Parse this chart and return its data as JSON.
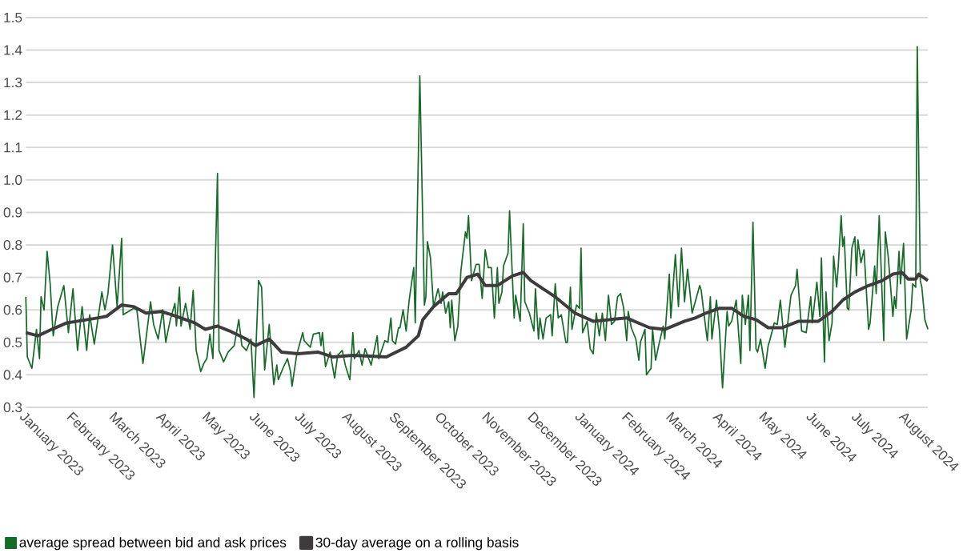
{
  "chart_data": {
    "type": "line",
    "xlim": [
      "2023-01-01",
      "2024-08-16"
    ],
    "ylim": [
      0.3,
      1.5
    ],
    "yticks": [
      0.3,
      0.4,
      0.5,
      0.6,
      0.7,
      0.8,
      0.9,
      {
        "value": 1.0,
        "label": "1.0"
      },
      1.1,
      1.2,
      1.3,
      1.4,
      1.5
    ],
    "xticks": [
      {
        "value": "2023-01-01",
        "label": "January 2023"
      },
      {
        "value": "2023-02-01",
        "label": "February 2023"
      },
      {
        "value": "2023-03-01",
        "label": "March 2023"
      },
      {
        "value": "2023-04-01",
        "label": "April 2023"
      },
      {
        "value": "2023-05-01",
        "label": "May 2023"
      },
      {
        "value": "2023-06-01",
        "label": "June 2023"
      },
      {
        "value": "2023-07-01",
        "label": "July 2023"
      },
      {
        "value": "2023-08-01",
        "label": "August 2023"
      },
      {
        "value": "2023-09-01",
        "label": "September 2023"
      },
      {
        "value": "2023-10-01",
        "label": "October 2023"
      },
      {
        "value": "2023-11-01",
        "label": "November 2023"
      },
      {
        "value": "2023-12-01",
        "label": "December 2023"
      },
      {
        "value": "2024-01-01",
        "label": "January 2024"
      },
      {
        "value": "2024-02-01",
        "label": "February 2024"
      },
      {
        "value": "2024-03-01",
        "label": "March 2024"
      },
      {
        "value": "2024-04-01",
        "label": "April 2024"
      },
      {
        "value": "2024-05-01",
        "label": "May 2024"
      },
      {
        "value": "2024-06-01",
        "label": "June 2024"
      },
      {
        "value": "2024-07-01",
        "label": "July 2024"
      },
      {
        "value": "2024-08-01",
        "label": "August 2024"
      }
    ],
    "grid": "y",
    "legend": "bottom",
    "series": [
      {
        "name": "average spread between bid and ask prices",
        "color": "#176b28",
        "x": [
          "2023-01-01",
          "2023-01-02",
          "2023-01-05",
          "2023-01-08",
          "2023-01-10",
          "2023-01-11",
          "2023-01-13",
          "2023-01-15",
          "2023-01-17",
          "2023-01-19",
          "2023-01-22",
          "2023-01-26",
          "2023-01-29",
          "2023-02-01",
          "2023-02-04",
          "2023-02-07",
          "2023-02-10",
          "2023-02-12",
          "2023-02-15",
          "2023-02-20",
          "2023-02-22",
          "2023-02-24",
          "2023-02-27",
          "2023-03-02",
          "2023-03-05",
          "2023-03-06",
          "2023-03-13",
          "2023-03-15",
          "2023-03-19",
          "2023-03-21",
          "2023-03-24",
          "2023-03-26",
          "2023-03-29",
          "2023-04-01",
          "2023-04-03",
          "2023-04-04",
          "2023-04-06",
          "2023-04-09",
          "2023-04-10",
          "2023-04-12",
          "2023-04-13",
          "2023-04-16",
          "2023-04-19",
          "2023-04-21",
          "2023-04-23",
          "2023-04-26",
          "2023-04-28",
          "2023-04-30",
          "2023-05-02",
          "2023-05-04",
          "2023-05-07",
          "2023-05-08",
          "2023-05-11",
          "2023-05-14",
          "2023-05-18",
          "2023-05-21",
          "2023-05-23",
          "2023-05-26",
          "2023-05-29",
          "2023-05-31",
          "2023-06-03",
          "2023-06-05",
          "2023-06-07",
          "2023-06-10",
          "2023-06-13",
          "2023-06-15",
          "2023-06-16",
          "2023-06-19",
          "2023-06-22",
          "2023-06-24",
          "2023-06-25",
          "2023-06-28",
          "2023-07-02",
          "2023-07-03",
          "2023-07-07",
          "2023-07-09",
          "2023-07-13",
          "2023-07-14",
          "2023-07-15",
          "2023-07-17",
          "2023-07-20",
          "2023-07-23",
          "2023-07-25",
          "2023-07-28",
          "2023-07-30",
          "2023-08-02",
          "2023-08-04",
          "2023-08-05",
          "2023-08-08",
          "2023-08-10",
          "2023-08-12",
          "2023-08-16",
          "2023-08-20",
          "2023-08-21",
          "2023-08-25",
          "2023-08-27",
          "2023-08-29",
          "2023-08-30",
          "2023-09-01",
          "2023-09-03",
          "2023-09-04",
          "2023-09-06",
          "2023-09-08",
          "2023-09-10",
          "2023-09-13",
          "2023-09-14",
          "2023-09-17",
          "2023-09-18",
          "2023-09-20",
          "2023-09-21",
          "2023-09-22",
          "2023-09-24",
          "2023-09-26",
          "2023-09-29",
          "2023-10-01",
          "2023-10-02",
          "2023-10-04",
          "2023-10-06",
          "2023-10-07",
          "2023-10-08",
          "2023-10-10",
          "2023-10-12",
          "2023-10-14",
          "2023-10-17",
          "2023-10-18",
          "2023-10-19",
          "2023-10-21",
          "2023-10-24",
          "2023-10-26",
          "2023-10-28",
          "2023-10-30",
          "2023-11-01",
          "2023-11-03",
          "2023-11-05",
          "2023-11-07",
          "2023-11-08",
          "2023-11-10",
          "2023-11-11",
          "2023-11-14",
          "2023-11-15",
          "2023-11-18",
          "2023-11-19",
          "2023-11-22",
          "2023-11-24",
          "2023-11-25",
          "2023-11-28",
          "2023-12-01",
          "2023-12-02",
          "2023-12-04",
          "2023-12-05",
          "2023-12-07",
          "2023-12-09",
          "2023-12-12",
          "2023-12-13",
          "2023-12-15",
          "2023-12-17",
          "2023-12-19",
          "2023-12-22",
          "2023-12-23",
          "2023-12-25",
          "2023-12-26",
          "2023-12-29",
          "2023-12-31",
          "2024-01-01",
          "2024-01-02",
          "2024-01-05",
          "2024-01-07",
          "2024-01-09",
          "2024-01-11",
          "2024-01-13",
          "2024-01-15",
          "2024-01-17",
          "2024-01-19",
          "2024-01-21",
          "2024-01-23",
          "2024-01-25",
          "2024-01-27",
          "2024-01-29",
          "2024-01-31",
          "2024-02-01",
          "2024-02-03",
          "2024-02-06",
          "2024-02-08",
          "2024-02-09",
          "2024-02-12",
          "2024-02-13",
          "2024-02-16",
          "2024-02-17",
          "2024-02-19",
          "2024-02-21",
          "2024-02-24",
          "2024-02-25",
          "2024-02-28",
          "2024-02-29",
          "2024-03-03",
          "2024-03-05",
          "2024-03-07",
          "2024-03-09",
          "2024-03-11",
          "2024-03-14",
          "2024-03-19",
          "2024-03-20",
          "2024-03-22",
          "2024-03-24",
          "2024-03-26",
          "2024-03-27",
          "2024-03-30",
          "2024-04-01",
          "2024-04-03",
          "2024-04-06",
          "2024-04-07",
          "2024-04-09",
          "2024-04-12",
          "2024-04-15",
          "2024-04-16",
          "2024-04-18",
          "2024-04-20",
          "2024-04-21",
          "2024-04-23",
          "2024-04-25",
          "2024-04-26",
          "2024-04-28",
          "2024-05-01",
          "2024-05-03",
          "2024-05-04",
          "2024-05-07",
          "2024-05-09",
          "2024-05-11",
          "2024-05-14",
          "2024-05-16",
          "2024-05-18",
          "2024-05-21",
          "2024-05-22",
          "2024-05-25",
          "2024-05-28",
          "2024-05-31",
          "2024-06-01",
          "2024-06-04",
          "2024-06-06",
          "2024-06-07",
          "2024-06-09",
          "2024-06-10",
          "2024-06-12",
          "2024-06-14",
          "2024-06-15",
          "2024-06-17",
          "2024-06-18",
          "2024-06-20",
          "2024-06-21",
          "2024-06-22",
          "2024-06-24",
          "2024-06-25",
          "2024-06-27",
          "2024-06-29",
          "2024-06-30",
          "2024-07-01",
          "2024-07-03",
          "2024-07-05",
          "2024-07-08",
          "2024-07-09",
          "2024-07-12",
          "2024-07-13",
          "2024-07-15",
          "2024-07-18",
          "2024-07-19",
          "2024-07-21",
          "2024-07-24",
          "2024-07-25",
          "2024-07-26",
          "2024-07-28",
          "2024-07-29",
          "2024-07-31",
          "2024-08-02",
          "2024-08-05",
          "2024-08-06",
          "2024-08-08",
          "2024-08-09",
          "2024-08-11",
          "2024-08-12",
          "2024-08-14",
          "2024-08-16"
        ],
        "values": [
          0.64,
          0.455,
          0.42,
          0.54,
          0.45,
          0.64,
          0.6,
          0.78,
          0.68,
          0.52,
          0.61,
          0.675,
          0.53,
          0.665,
          0.475,
          0.61,
          0.475,
          0.585,
          0.495,
          0.655,
          0.6,
          0.65,
          0.8,
          0.61,
          0.82,
          0.585,
          0.605,
          0.6,
          0.435,
          0.51,
          0.625,
          0.555,
          0.51,
          0.6,
          0.5,
          0.525,
          0.57,
          0.62,
          0.55,
          0.67,
          0.55,
          0.62,
          0.54,
          0.66,
          0.475,
          0.41,
          0.435,
          0.45,
          0.525,
          0.45,
          1.02,
          0.475,
          0.44,
          0.47,
          0.49,
          0.57,
          0.49,
          0.475,
          0.51,
          0.33,
          0.69,
          0.67,
          0.415,
          0.555,
          0.37,
          0.43,
          0.385,
          0.42,
          0.45,
          0.41,
          0.365,
          0.46,
          0.53,
          0.505,
          0.485,
          0.525,
          0.53,
          0.49,
          0.53,
          0.425,
          0.47,
          0.39,
          0.46,
          0.475,
          0.43,
          0.385,
          0.53,
          0.45,
          0.475,
          0.43,
          0.48,
          0.43,
          0.52,
          0.45,
          0.505,
          0.5,
          0.575,
          0.505,
          0.495,
          0.545,
          0.545,
          0.6,
          0.535,
          0.63,
          0.73,
          0.56,
          1.32,
          1.09,
          0.615,
          0.64,
          0.81,
          0.76,
          0.61,
          0.665,
          0.62,
          0.655,
          0.59,
          0.625,
          0.545,
          0.63,
          0.505,
          0.55,
          0.72,
          0.84,
          0.82,
          0.89,
          0.69,
          0.74,
          0.74,
          0.635,
          0.785,
          0.73,
          0.73,
          0.575,
          0.73,
          0.62,
          0.655,
          0.735,
          0.775,
          0.905,
          0.575,
          0.645,
          0.565,
          0.865,
          0.625,
          0.59,
          0.535,
          0.665,
          0.51,
          0.575,
          0.51,
          0.575,
          0.585,
          0.52,
          0.68,
          0.575,
          0.585,
          0.5,
          0.5,
          0.67,
          0.54,
          0.615,
          0.605,
          0.79,
          0.53,
          0.565,
          0.48,
          0.465,
          0.59,
          0.52,
          0.59,
          0.505,
          0.645,
          0.555,
          0.565,
          0.64,
          0.65,
          0.605,
          0.505,
          0.595,
          0.545,
          0.51,
          0.445,
          0.5,
          0.54,
          0.4,
          0.42,
          0.54,
          0.445,
          0.49,
          0.55,
          0.51,
          0.71,
          0.575,
          0.77,
          0.61,
          0.79,
          0.625,
          0.725,
          0.59,
          0.675,
          0.66,
          0.58,
          0.505,
          0.64,
          0.51,
          0.63,
          0.535,
          0.36,
          0.595,
          0.55,
          0.565,
          0.63,
          0.435,
          0.645,
          0.555,
          0.645,
          0.475,
          0.87,
          0.48,
          0.47,
          0.51,
          0.42,
          0.49,
          0.505,
          0.56,
          0.555,
          0.63,
          0.485,
          0.565,
          0.645,
          0.675,
          0.725,
          0.535,
          0.53,
          0.64,
          0.56,
          0.685,
          0.58,
          0.76,
          0.44,
          0.655,
          0.505,
          0.56,
          0.765,
          0.67,
          0.73,
          0.89,
          0.795,
          0.825,
          0.605,
          0.6,
          0.79,
          0.825,
          0.705,
          0.815,
          0.745,
          0.785,
          0.54,
          0.56,
          0.735,
          0.65,
          0.89,
          0.505,
          0.84,
          0.76,
          0.58,
          0.64,
          0.605,
          0.78,
          0.68,
          0.805,
          0.51,
          0.6,
          0.68,
          0.67,
          1.41,
          0.69,
          0.67,
          0.57,
          0.54
        ]
      },
      {
        "name": "30-day average on a rolling basis",
        "color": "#3d3b3c",
        "x": [
          "2023-01-01",
          "2023-01-09",
          "2023-01-18",
          "2023-01-28",
          "2023-02-04",
          "2023-02-17",
          "2023-02-23",
          "2023-03-05",
          "2023-03-13",
          "2023-03-21",
          "2023-03-31",
          "2023-04-07",
          "2023-04-22",
          "2023-04-29",
          "2023-05-07",
          "2023-05-15",
          "2023-05-26",
          "2023-06-01",
          "2023-06-10",
          "2023-06-18",
          "2023-06-29",
          "2023-07-12",
          "2023-07-22",
          "2023-08-04",
          "2023-08-26",
          "2023-09-08",
          "2023-09-16",
          "2023-09-19",
          "2023-09-26",
          "2023-10-06",
          "2023-10-11",
          "2023-10-18",
          "2023-10-25",
          "2023-10-30",
          "2023-11-07",
          "2023-11-17",
          "2023-11-24",
          "2023-11-29",
          "2023-12-07",
          "2023-12-15",
          "2023-12-28",
          "2024-01-09",
          "2024-01-20",
          "2024-01-31",
          "2024-02-15",
          "2024-02-25",
          "2024-03-09",
          "2024-03-16",
          "2024-03-23",
          "2024-04-01",
          "2024-04-09",
          "2024-04-17",
          "2024-04-25",
          "2024-05-03",
          "2024-05-12",
          "2024-05-23",
          "2024-06-05",
          "2024-06-14",
          "2024-06-21",
          "2024-06-29",
          "2024-07-08",
          "2024-07-17",
          "2024-07-24",
          "2024-07-30",
          "2024-08-03",
          "2024-08-08",
          "2024-08-10",
          "2024-08-16"
        ],
        "values": [
          0.53,
          0.52,
          0.54,
          0.56,
          0.565,
          0.575,
          0.58,
          0.615,
          0.61,
          0.59,
          0.595,
          0.585,
          0.56,
          0.54,
          0.55,
          0.535,
          0.51,
          0.49,
          0.51,
          0.47,
          0.465,
          0.47,
          0.455,
          0.46,
          0.455,
          0.485,
          0.52,
          0.57,
          0.61,
          0.65,
          0.65,
          0.7,
          0.71,
          0.675,
          0.675,
          0.705,
          0.715,
          0.69,
          0.665,
          0.64,
          0.59,
          0.565,
          0.57,
          0.575,
          0.545,
          0.54,
          0.565,
          0.575,
          0.59,
          0.605,
          0.605,
          0.58,
          0.57,
          0.545,
          0.545,
          0.565,
          0.565,
          0.595,
          0.63,
          0.655,
          0.675,
          0.69,
          0.71,
          0.715,
          0.695,
          0.695,
          0.71,
          0.69
        ]
      }
    ]
  }
}
